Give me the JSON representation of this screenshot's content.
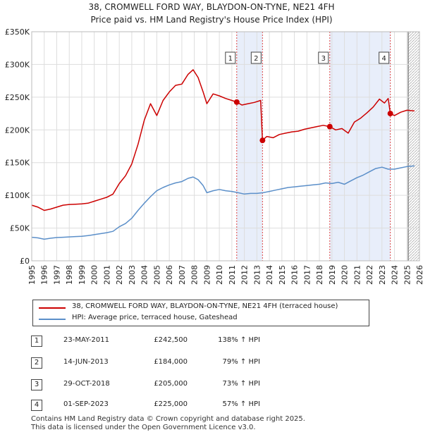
{
  "titles": {
    "line1": "38, CROMWELL FORD WAY, BLAYDON-ON-TYNE, NE21 4FH",
    "line2": "Price paid vs. HM Land Registry's House Price Index (HPI)"
  },
  "colors": {
    "property": "#cc0000",
    "hpi": "#5b8fc9",
    "highlight": "#e8eefa",
    "grid": "#dddddd",
    "vline": "#dd4444"
  },
  "chart_data": {
    "type": "line",
    "xlim": [
      1995,
      2026
    ],
    "ylim": [
      0,
      350000
    ],
    "x_ticks": [
      1995,
      1996,
      1997,
      1998,
      1999,
      2000,
      2001,
      2002,
      2003,
      2004,
      2005,
      2006,
      2007,
      2008,
      2009,
      2010,
      2011,
      2012,
      2013,
      2014,
      2015,
      2016,
      2017,
      2018,
      2019,
      2020,
      2021,
      2022,
      2023,
      2024,
      2025,
      2026
    ],
    "y_ticks": [
      {
        "value": 0,
        "label": "£0"
      },
      {
        "value": 50000,
        "label": "£50K"
      },
      {
        "value": 100000,
        "label": "£100K"
      },
      {
        "value": 150000,
        "label": "£150K"
      },
      {
        "value": 200000,
        "label": "£200K"
      },
      {
        "value": 250000,
        "label": "£250K"
      },
      {
        "value": 300000,
        "label": "£300K"
      },
      {
        "value": 350000,
        "label": "£350K"
      }
    ],
    "highlight_ranges": [
      [
        2011.39,
        2013.45
      ],
      [
        2018.83,
        2023.67
      ]
    ],
    "future_start": 2025.1,
    "series": [
      {
        "name": "38, CROMWELL FORD WAY, BLAYDON-ON-TYNE, NE21 4FH (terraced house)",
        "color": "#cc0000",
        "points": [
          [
            1995.0,
            85000
          ],
          [
            1995.5,
            82000
          ],
          [
            1996.0,
            77000
          ],
          [
            1996.5,
            79000
          ],
          [
            1997.0,
            82000
          ],
          [
            1997.5,
            85000
          ],
          [
            1998.0,
            86000
          ],
          [
            1998.5,
            86500
          ],
          [
            1999.0,
            87000
          ],
          [
            1999.5,
            88000
          ],
          [
            2000.0,
            91000
          ],
          [
            2000.5,
            94000
          ],
          [
            2001.0,
            97000
          ],
          [
            2001.5,
            102000
          ],
          [
            2002.0,
            118000
          ],
          [
            2002.5,
            130000
          ],
          [
            2003.0,
            148000
          ],
          [
            2003.5,
            178000
          ],
          [
            2004.0,
            215000
          ],
          [
            2004.5,
            240000
          ],
          [
            2005.0,
            222000
          ],
          [
            2005.5,
            245000
          ],
          [
            2006.0,
            258000
          ],
          [
            2006.5,
            268000
          ],
          [
            2007.0,
            270000
          ],
          [
            2007.5,
            285000
          ],
          [
            2007.9,
            292000
          ],
          [
            2008.3,
            280000
          ],
          [
            2008.7,
            258000
          ],
          [
            2009.0,
            240000
          ],
          [
            2009.5,
            255000
          ],
          [
            2010.0,
            252000
          ],
          [
            2010.5,
            248000
          ],
          [
            2011.0,
            245000
          ],
          [
            2011.39,
            242500
          ],
          [
            2011.8,
            238000
          ],
          [
            2012.3,
            240000
          ],
          [
            2012.8,
            242000
          ],
          [
            2013.3,
            245000
          ],
          [
            2013.45,
            184000
          ],
          [
            2013.8,
            190000
          ],
          [
            2014.3,
            188000
          ],
          [
            2014.8,
            193000
          ],
          [
            2015.3,
            195000
          ],
          [
            2015.8,
            197000
          ],
          [
            2016.3,
            198000
          ],
          [
            2016.8,
            201000
          ],
          [
            2017.3,
            203000
          ],
          [
            2017.8,
            205000
          ],
          [
            2018.3,
            207000
          ],
          [
            2018.83,
            205000
          ],
          [
            2019.3,
            200000
          ],
          [
            2019.8,
            202000
          ],
          [
            2020.3,
            195000
          ],
          [
            2020.8,
            212000
          ],
          [
            2021.3,
            218000
          ],
          [
            2021.8,
            226000
          ],
          [
            2022.3,
            235000
          ],
          [
            2022.8,
            247000
          ],
          [
            2023.2,
            241000
          ],
          [
            2023.5,
            248000
          ],
          [
            2023.67,
            225000
          ],
          [
            2024.0,
            222000
          ],
          [
            2024.5,
            227000
          ],
          [
            2025.0,
            230000
          ],
          [
            2025.6,
            229000
          ]
        ]
      },
      {
        "name": "HPI: Average price, terraced house, Gateshead",
        "color": "#5b8fc9",
        "points": [
          [
            1995.0,
            36000
          ],
          [
            1995.5,
            35000
          ],
          [
            1996.0,
            33000
          ],
          [
            1996.5,
            34500
          ],
          [
            1997.0,
            35500
          ],
          [
            1997.5,
            36000
          ],
          [
            1998.0,
            36500
          ],
          [
            1998.5,
            37000
          ],
          [
            1999.0,
            37500
          ],
          [
            1999.5,
            38500
          ],
          [
            2000.0,
            40000
          ],
          [
            2000.5,
            41500
          ],
          [
            2001.0,
            43000
          ],
          [
            2001.5,
            45000
          ],
          [
            2002.0,
            52000
          ],
          [
            2002.5,
            57000
          ],
          [
            2003.0,
            65000
          ],
          [
            2003.5,
            77000
          ],
          [
            2004.0,
            88000
          ],
          [
            2004.5,
            98000
          ],
          [
            2005.0,
            107000
          ],
          [
            2005.5,
            112000
          ],
          [
            2006.0,
            116000
          ],
          [
            2006.5,
            119000
          ],
          [
            2007.0,
            121000
          ],
          [
            2007.5,
            126000
          ],
          [
            2007.9,
            128000
          ],
          [
            2008.3,
            124000
          ],
          [
            2008.7,
            115000
          ],
          [
            2009.0,
            104000
          ],
          [
            2009.5,
            107000
          ],
          [
            2010.0,
            109000
          ],
          [
            2010.5,
            107000
          ],
          [
            2011.0,
            106000
          ],
          [
            2011.5,
            104000
          ],
          [
            2012.0,
            102000
          ],
          [
            2012.5,
            103000
          ],
          [
            2013.0,
            103000
          ],
          [
            2013.5,
            104000
          ],
          [
            2014.0,
            106000
          ],
          [
            2014.5,
            108000
          ],
          [
            2015.0,
            110000
          ],
          [
            2015.5,
            112000
          ],
          [
            2016.0,
            113000
          ],
          [
            2016.5,
            114000
          ],
          [
            2017.0,
            115000
          ],
          [
            2017.5,
            116000
          ],
          [
            2018.0,
            117000
          ],
          [
            2018.5,
            119000
          ],
          [
            2019.0,
            118000
          ],
          [
            2019.5,
            120000
          ],
          [
            2020.0,
            117000
          ],
          [
            2020.5,
            122000
          ],
          [
            2021.0,
            127000
          ],
          [
            2021.5,
            131000
          ],
          [
            2022.0,
            136000
          ],
          [
            2022.5,
            141000
          ],
          [
            2023.0,
            143000
          ],
          [
            2023.5,
            140000
          ],
          [
            2024.0,
            140000
          ],
          [
            2024.5,
            142000
          ],
          [
            2025.0,
            144000
          ],
          [
            2025.6,
            145000
          ]
        ]
      }
    ],
    "sales": [
      {
        "num": "1",
        "x": 2011.39,
        "price": 242500
      },
      {
        "num": "2",
        "x": 2013.45,
        "price": 184000
      },
      {
        "num": "3",
        "x": 2018.83,
        "price": 205000
      },
      {
        "num": "4",
        "x": 2023.67,
        "price": 225000
      }
    ]
  },
  "legend": {
    "property_label": "38, CROMWELL FORD WAY, BLAYDON-ON-TYNE, NE21 4FH (terraced house)",
    "hpi_label": "HPI: Average price, terraced house, Gateshead"
  },
  "sales_table": [
    {
      "num": "1",
      "date": "23-MAY-2011",
      "price": "£242,500",
      "hpi": "138% ↑ HPI"
    },
    {
      "num": "2",
      "date": "14-JUN-2013",
      "price": "£184,000",
      "hpi": "79% ↑ HPI"
    },
    {
      "num": "3",
      "date": "29-OCT-2018",
      "price": "£205,000",
      "hpi": "73% ↑ HPI"
    },
    {
      "num": "4",
      "date": "01-SEP-2023",
      "price": "£225,000",
      "hpi": "57% ↑ HPI"
    }
  ],
  "footer": {
    "line1": "Contains HM Land Registry data © Crown copyright and database right 2025.",
    "line2": "This data is licensed under the Open Government Licence v3.0."
  }
}
